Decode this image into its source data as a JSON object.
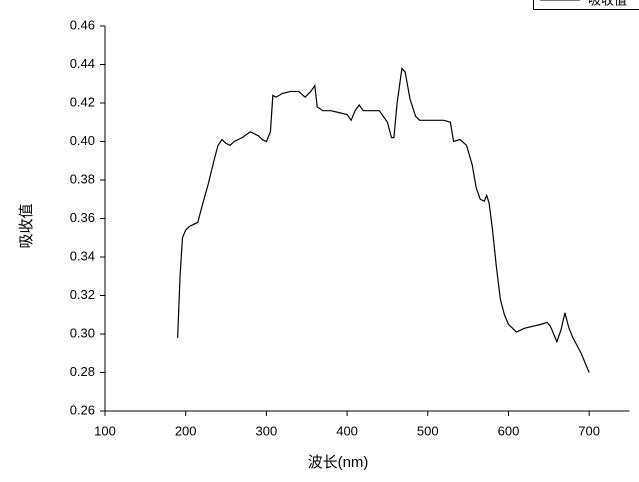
{
  "chart_data": {
    "type": "line",
    "x_label": "波长(nm)",
    "y_label": "吸收值",
    "xlim": [
      100,
      750
    ],
    "xticks": [
      100,
      200,
      300,
      400,
      500,
      600,
      700
    ],
    "ylim": [
      0.26,
      0.46
    ],
    "yticks": [
      {
        "value": 0.26,
        "label": "0.26"
      },
      {
        "value": 0.28,
        "label": "0.28"
      },
      {
        "value": 0.3,
        "label": "0.30"
      },
      {
        "value": 0.32,
        "label": "0.32"
      },
      {
        "value": 0.34,
        "label": "0.34"
      },
      {
        "value": 0.36,
        "label": "0.36"
      },
      {
        "value": 0.38,
        "label": "0.38"
      },
      {
        "value": 0.4,
        "label": "0.40"
      },
      {
        "value": 0.42,
        "label": "0.42"
      },
      {
        "value": 0.44,
        "label": "0.44"
      },
      {
        "value": 0.46,
        "label": "0.46"
      }
    ],
    "legend": "top-right",
    "x": [
      190,
      193,
      196,
      200,
      205,
      210,
      215,
      220,
      228,
      235,
      240,
      245,
      250,
      255,
      260,
      270,
      280,
      290,
      295,
      300,
      305,
      308,
      312,
      320,
      330,
      340,
      348,
      355,
      360,
      363,
      370,
      380,
      390,
      400,
      405,
      410,
      415,
      420,
      430,
      440,
      450,
      455,
      458,
      462,
      468,
      472,
      478,
      485,
      490,
      500,
      510,
      520,
      528,
      532,
      540,
      548,
      555,
      560,
      565,
      570,
      573,
      576,
      580,
      585,
      590,
      595,
      600,
      605,
      610,
      620,
      630,
      640,
      648,
      652,
      660,
      665,
      670,
      675,
      680,
      690,
      700
    ],
    "series": [
      {
        "name": "吸收值",
        "color": "#000000",
        "values": [
          0.298,
          0.33,
          0.35,
          0.354,
          0.356,
          0.357,
          0.358,
          0.366,
          0.378,
          0.39,
          0.398,
          0.401,
          0.399,
          0.398,
          0.4,
          0.402,
          0.405,
          0.403,
          0.401,
          0.4,
          0.405,
          0.424,
          0.423,
          0.425,
          0.426,
          0.426,
          0.423,
          0.426,
          0.429,
          0.418,
          0.416,
          0.416,
          0.415,
          0.414,
          0.411,
          0.416,
          0.419,
          0.416,
          0.416,
          0.416,
          0.41,
          0.402,
          0.402,
          0.42,
          0.438,
          0.436,
          0.422,
          0.413,
          0.411,
          0.411,
          0.411,
          0.411,
          0.41,
          0.4,
          0.401,
          0.398,
          0.388,
          0.376,
          0.37,
          0.369,
          0.372,
          0.368,
          0.355,
          0.335,
          0.318,
          0.31,
          0.305,
          0.303,
          0.301,
          0.303,
          0.304,
          0.305,
          0.306,
          0.304,
          0.296,
          0.302,
          0.311,
          0.303,
          0.298,
          0.29,
          0.28
        ]
      }
    ]
  }
}
